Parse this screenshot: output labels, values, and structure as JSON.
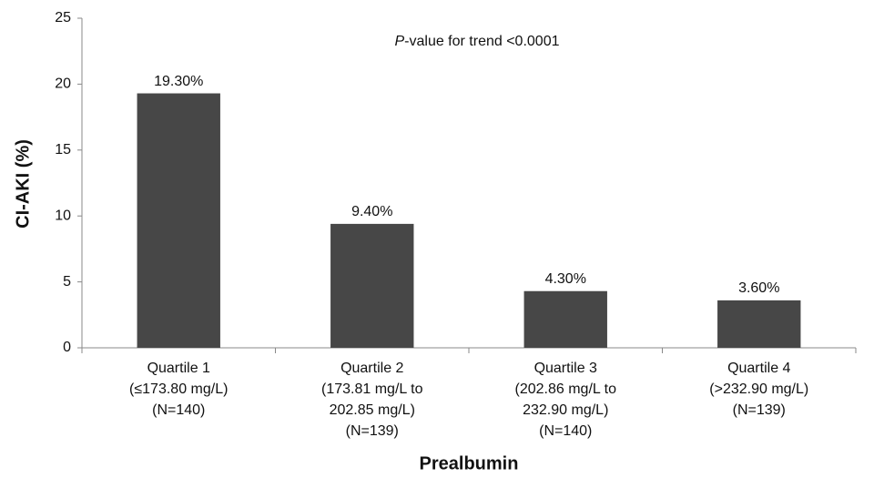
{
  "chart_data": {
    "type": "bar",
    "annotation": [
      "P",
      "-value for trend <0.0001"
    ],
    "x_label": "Prealbumin",
    "y_label": "CI-AKI (%)",
    "categories": [
      [
        "Quartile 1",
        "(≤173.80 mg/L)",
        "(N=140)"
      ],
      [
        "Quartile 2",
        "(173.81 mg/L to",
        "202.85 mg/L)",
        "(N=139)"
      ],
      [
        "Quartile 3",
        "(202.86 mg/L to",
        "232.90 mg/L)",
        "(N=140)"
      ],
      [
        "Quartile 4",
        "(>232.90 mg/L)",
        "(N=139)"
      ]
    ],
    "values": [
      19.3,
      9.4,
      4.3,
      3.6
    ],
    "value_labels": [
      "19.30%",
      "9.40%",
      "4.30%",
      "3.60%"
    ],
    "color": "#474747",
    "ylim": [
      0,
      25
    ],
    "yticks": [
      0,
      5,
      10,
      15,
      20,
      25
    ],
    "grid": false
  }
}
